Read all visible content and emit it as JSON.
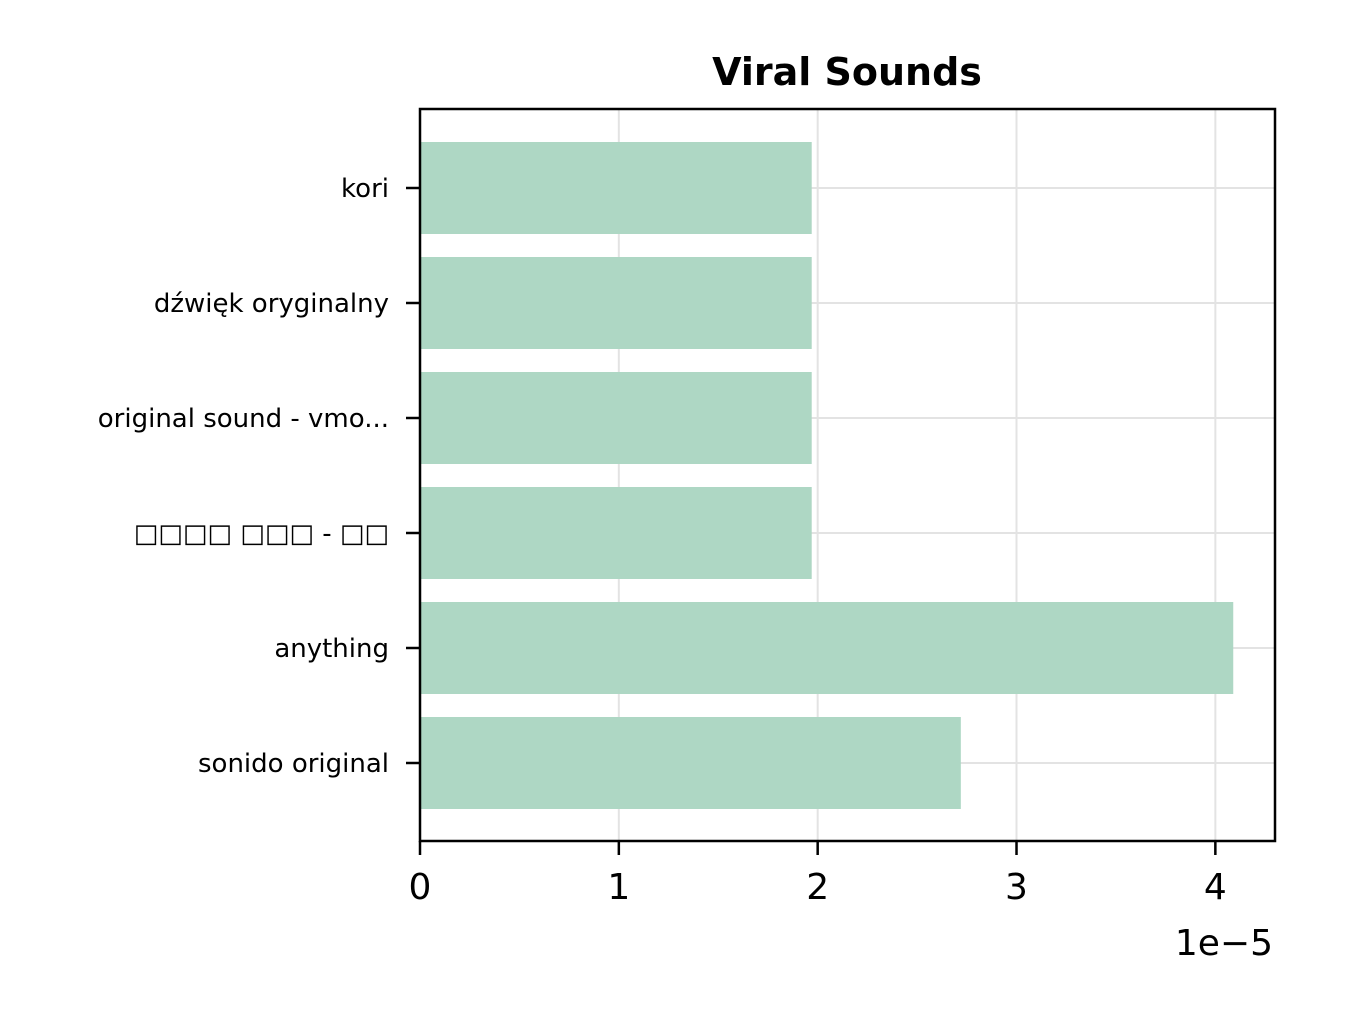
{
  "chart_data": {
    "type": "bar",
    "orientation": "horizontal",
    "title": "Viral Sounds",
    "xlabel": "",
    "ylabel": "",
    "categories": [
      "kori",
      "dźwięk oryginalny",
      "original sound - vmo...",
      "□□□□ □□□ - □□",
      "anything",
      "sonido original"
    ],
    "values": [
      1.97e-05,
      1.97e-05,
      1.97e-05,
      1.97e-05,
      4.09e-05,
      2.72e-05
    ],
    "xlim": [
      0,
      4.3e-05
    ],
    "xticks": [
      0,
      1e-05,
      2e-05,
      3e-05,
      4e-05
    ],
    "xtick_labels": [
      "0",
      "1",
      "2",
      "3",
      "4"
    ],
    "x_offset_label": "1e−5",
    "grid": true,
    "bar_color": "#aed7c4",
    "grid_color": "#e3e3e3"
  }
}
